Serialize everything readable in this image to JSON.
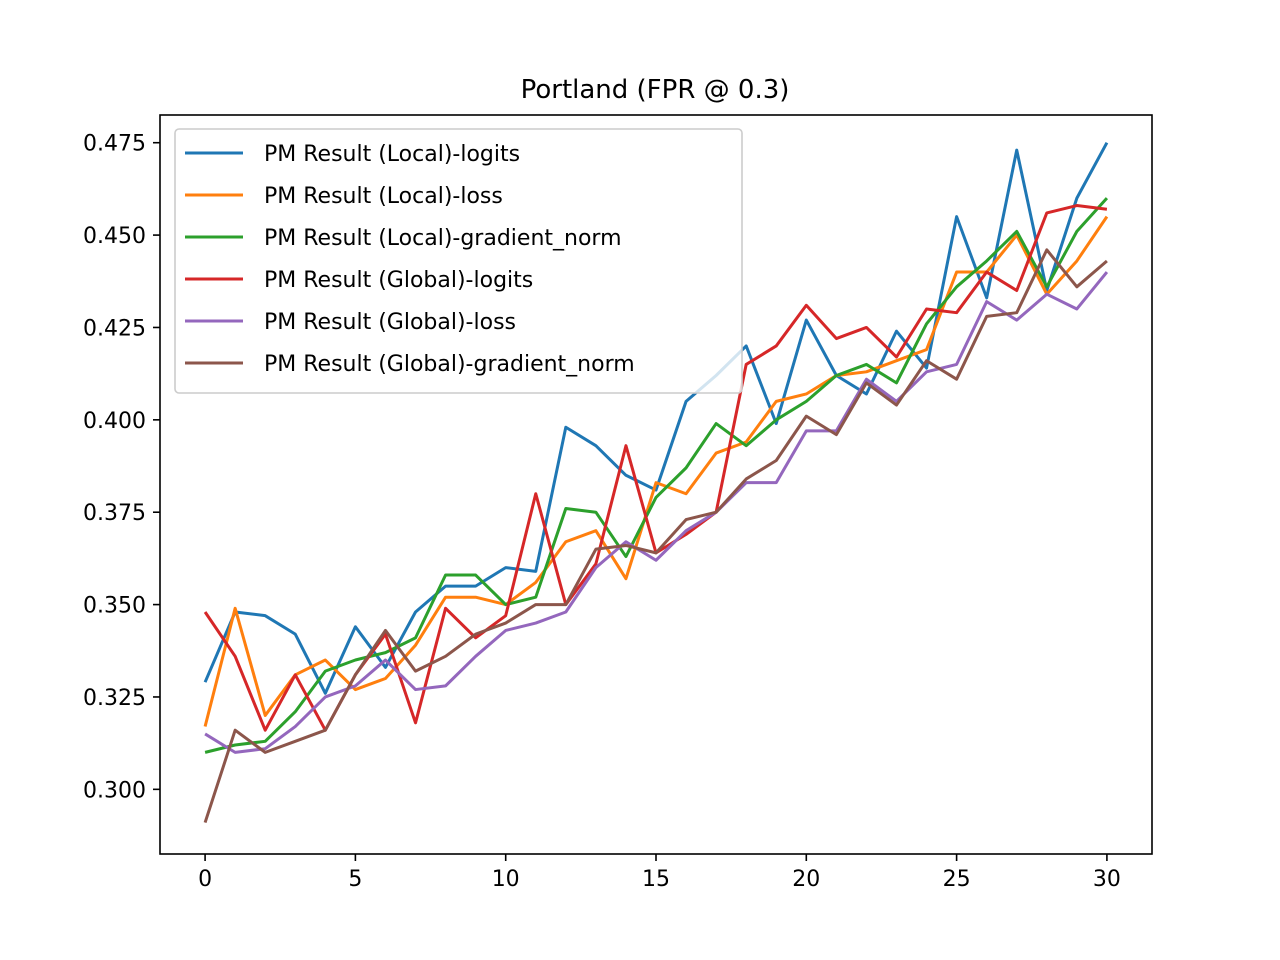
{
  "chart_data": {
    "type": "line",
    "title": "Portland (FPR @ 0.3)",
    "xlabel": "",
    "ylabel": "",
    "xlim": [
      -1.5,
      31.5
    ],
    "ylim": [
      0.2825,
      0.4825
    ],
    "x_ticks": [
      0,
      5,
      10,
      15,
      20,
      25,
      30
    ],
    "x_tick_labels": [
      "0",
      "5",
      "10",
      "15",
      "20",
      "25",
      "30"
    ],
    "y_ticks": [
      0.3,
      0.325,
      0.35,
      0.375,
      0.4,
      0.425,
      0.45,
      0.475
    ],
    "y_tick_labels": [
      "0.300",
      "0.325",
      "0.350",
      "0.375",
      "0.400",
      "0.425",
      "0.450",
      "0.475"
    ],
    "grid": false,
    "legend_position": "upper-left",
    "x": [
      0,
      1,
      2,
      3,
      4,
      5,
      6,
      7,
      8,
      9,
      10,
      11,
      12,
      13,
      14,
      15,
      16,
      17,
      18,
      19,
      20,
      21,
      22,
      23,
      24,
      25,
      26,
      27,
      28,
      29,
      30
    ],
    "series": [
      {
        "name": "PM Result (Local)-logits",
        "color": "#1f77b4",
        "values": [
          0.329,
          0.348,
          0.347,
          0.342,
          0.326,
          0.344,
          0.333,
          0.348,
          0.355,
          0.355,
          0.36,
          0.359,
          0.398,
          0.393,
          0.385,
          0.381,
          0.405,
          0.412,
          0.42,
          0.399,
          0.427,
          0.412,
          0.407,
          0.424,
          0.414,
          0.455,
          0.433,
          0.473,
          0.435,
          0.46,
          0.475
        ]
      },
      {
        "name": "PM Result (Local)-loss",
        "color": "#ff7f0e",
        "values": [
          0.317,
          0.349,
          0.32,
          0.331,
          0.335,
          0.327,
          0.33,
          0.339,
          0.352,
          0.352,
          0.35,
          0.356,
          0.367,
          0.37,
          0.357,
          0.383,
          0.38,
          0.391,
          0.394,
          0.405,
          0.407,
          0.412,
          0.413,
          0.416,
          0.419,
          0.44,
          0.44,
          0.45,
          0.434,
          0.443,
          0.455
        ]
      },
      {
        "name": "PM Result (Local)-gradient_norm",
        "color": "#2ca02c",
        "values": [
          0.31,
          0.312,
          0.313,
          0.321,
          0.332,
          0.335,
          0.337,
          0.341,
          0.358,
          0.358,
          0.35,
          0.352,
          0.376,
          0.375,
          0.363,
          0.379,
          0.387,
          0.399,
          0.393,
          0.4,
          0.405,
          0.412,
          0.415,
          0.41,
          0.426,
          0.436,
          0.443,
          0.451,
          0.436,
          0.451,
          0.46
        ]
      },
      {
        "name": "PM Result (Global)-logits",
        "color": "#d62728",
        "values": [
          0.348,
          0.336,
          0.316,
          0.331,
          0.316,
          0.331,
          0.342,
          0.318,
          0.349,
          0.341,
          0.347,
          0.38,
          0.35,
          0.361,
          0.393,
          0.364,
          0.369,
          0.375,
          0.415,
          0.42,
          0.431,
          0.422,
          0.425,
          0.417,
          0.43,
          0.429,
          0.44,
          0.435,
          0.456,
          0.458,
          0.457
        ]
      },
      {
        "name": "PM Result (Global)-loss",
        "color": "#9467bd",
        "values": [
          0.315,
          0.31,
          0.311,
          0.317,
          0.325,
          0.328,
          0.335,
          0.327,
          0.328,
          0.336,
          0.343,
          0.345,
          0.348,
          0.36,
          0.367,
          0.362,
          0.37,
          0.375,
          0.383,
          0.383,
          0.397,
          0.397,
          0.411,
          0.405,
          0.413,
          0.415,
          0.432,
          0.427,
          0.434,
          0.43,
          0.44
        ]
      },
      {
        "name": "PM Result (Global)-gradient_norm",
        "color": "#8c564b",
        "values": [
          0.291,
          0.316,
          0.31,
          0.313,
          0.316,
          0.331,
          0.343,
          0.332,
          0.336,
          0.342,
          0.345,
          0.35,
          0.35,
          0.365,
          0.366,
          0.364,
          0.373,
          0.375,
          0.384,
          0.389,
          0.401,
          0.396,
          0.41,
          0.404,
          0.416,
          0.411,
          0.428,
          0.429,
          0.446,
          0.436,
          0.443
        ]
      }
    ]
  }
}
